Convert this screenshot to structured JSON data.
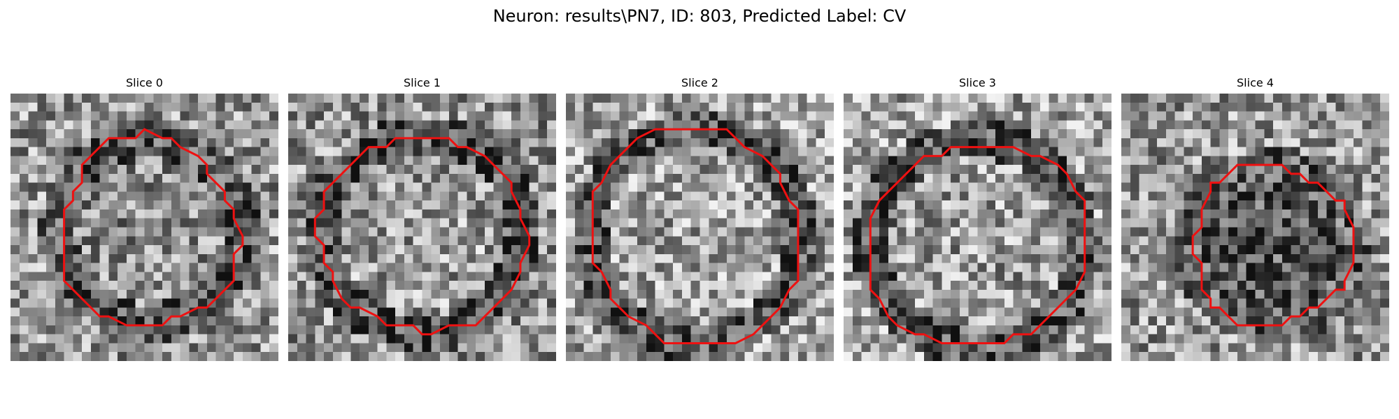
{
  "figure": {
    "title": "Neuron: results\\PN7, ID: 803, Predicted Label: CV"
  },
  "grid_size": 30,
  "colors": {
    "outline": "#ee1111",
    "pixel_dark": "#101010",
    "pixel_light": "#f2f2f2"
  },
  "panels": [
    {
      "title": "Slice 0",
      "seed": 11,
      "intensity": {
        "center": 0.55,
        "ring": 0.3,
        "bg": 0.6
      },
      "ring_shape": {
        "cx": 15.5,
        "cy": 15.5,
        "r": 10.2
      }
    },
    {
      "title": "Slice 1",
      "seed": 23,
      "intensity": {
        "center": 0.62,
        "ring": 0.28,
        "bg": 0.58
      },
      "ring_shape": {
        "cx": 15.0,
        "cy": 15.8,
        "r": 11.2
      }
    },
    {
      "title": "Slice 2",
      "seed": 37,
      "intensity": {
        "center": 0.65,
        "ring": 0.3,
        "bg": 0.66
      },
      "ring_shape": {
        "cx": 14.5,
        "cy": 16.0,
        "r": 12.0
      }
    },
    {
      "title": "Slice 3",
      "seed": 41,
      "intensity": {
        "center": 0.62,
        "ring": 0.3,
        "bg": 0.66
      },
      "ring_shape": {
        "cx": 15.0,
        "cy": 17.0,
        "r": 11.8
      }
    },
    {
      "title": "Slice 4",
      "seed": 53,
      "intensity": {
        "center": 0.3,
        "ring": 0.35,
        "bg": 0.6
      },
      "ring_shape": {
        "cx": 17.0,
        "cy": 17.0,
        "r": 9.0
      }
    }
  ]
}
